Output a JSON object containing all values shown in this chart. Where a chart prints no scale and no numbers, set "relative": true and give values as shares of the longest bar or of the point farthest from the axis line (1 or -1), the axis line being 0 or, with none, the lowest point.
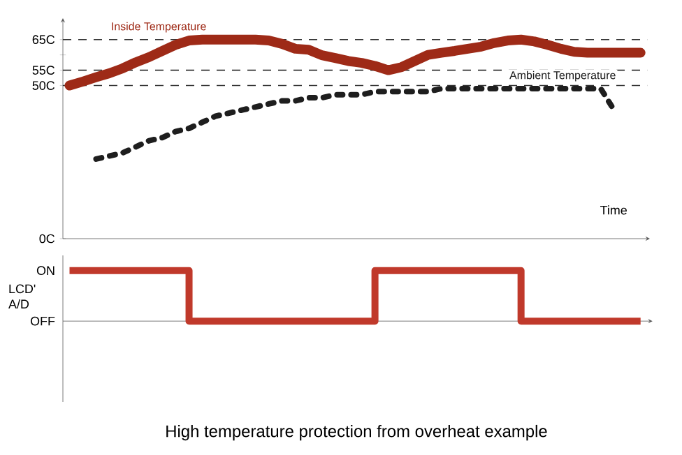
{
  "chart_data": [
    {
      "type": "line",
      "categories": [
        null,
        null,
        null,
        null,
        null,
        null,
        null,
        null,
        null,
        null,
        null,
        null,
        null,
        null,
        null,
        null,
        null,
        null,
        null,
        null,
        null,
        null,
        null,
        null,
        null,
        null,
        null,
        null,
        null,
        null,
        null,
        null,
        null,
        null,
        null,
        null,
        null,
        null,
        null,
        null,
        null,
        null,
        null,
        null
      ],
      "series": [
        {
          "name": "Inside Temperature",
          "color": "#9e2a17",
          "line_style": "solid",
          "values": [
            50,
            51.3,
            52.7,
            54,
            55.6,
            57.6,
            59.3,
            61.3,
            63.3,
            64.7,
            65,
            65,
            65,
            65,
            65,
            64.7,
            63.6,
            62,
            61.7,
            59.9,
            59,
            58,
            57.4,
            56.4,
            55,
            56,
            58,
            60,
            60.7,
            61.3,
            62,
            62.7,
            63.9,
            64.7,
            65,
            64.4,
            63.3,
            62,
            61,
            60.7,
            60.7,
            60.7,
            60.7,
            60.7
          ]
        },
        {
          "name": "Ambient Temperature",
          "color": "#1e1e1e",
          "line_style": "dotted",
          "values": [
            null,
            null,
            26,
            27,
            28,
            30,
            32,
            33,
            35,
            36,
            38,
            40,
            41,
            42,
            43,
            44,
            45,
            45,
            46,
            46,
            47,
            47,
            47,
            48,
            48,
            48,
            48,
            48,
            49,
            49,
            49,
            49,
            49,
            49,
            49,
            49,
            49,
            49,
            49,
            49,
            49,
            42,
            null,
            null
          ]
        }
      ],
      "ylim": [
        0,
        72
      ],
      "yticks": [
        {
          "value": 0,
          "label": "0C"
        },
        {
          "value": 50,
          "label": "50C"
        },
        {
          "value": 55,
          "label": "55C"
        },
        {
          "value": 60,
          "label": null
        },
        {
          "value": 65,
          "label": "65C"
        }
      ],
      "xlabel": "Time",
      "ref_lines": [
        {
          "axis": "y",
          "value": 50,
          "line_style": "dashed"
        },
        {
          "axis": "y",
          "value": 55,
          "line_style": "dashed"
        },
        {
          "axis": "y",
          "value": 65,
          "line_style": "dashed"
        }
      ]
    },
    {
      "type": "step",
      "categories": [
        null,
        null,
        null,
        null,
        null,
        null,
        null,
        null,
        null,
        null,
        null,
        null,
        null,
        null,
        null,
        null,
        null,
        null,
        null,
        null,
        null,
        null,
        null,
        null,
        null,
        null,
        null,
        null,
        null,
        null,
        null,
        null,
        null,
        null,
        null,
        null,
        null,
        null,
        null,
        null,
        null,
        null,
        null,
        null
      ],
      "values": [
        1,
        1,
        1,
        1,
        1,
        1,
        1,
        1,
        1,
        0,
        0,
        0,
        0,
        0,
        0,
        0,
        0,
        0,
        0,
        0,
        0,
        0,
        0,
        1,
        1,
        1,
        1,
        1,
        1,
        1,
        1,
        1,
        1,
        1,
        0,
        0,
        0,
        0,
        0,
        0,
        0,
        0,
        0,
        0
      ],
      "color": "#c0392b",
      "relative": true,
      "annotations": [
        "ON",
        "OFF"
      ],
      "ylabel": "LCD' A/D",
      "title": "High temperature protection from overheat example"
    }
  ]
}
